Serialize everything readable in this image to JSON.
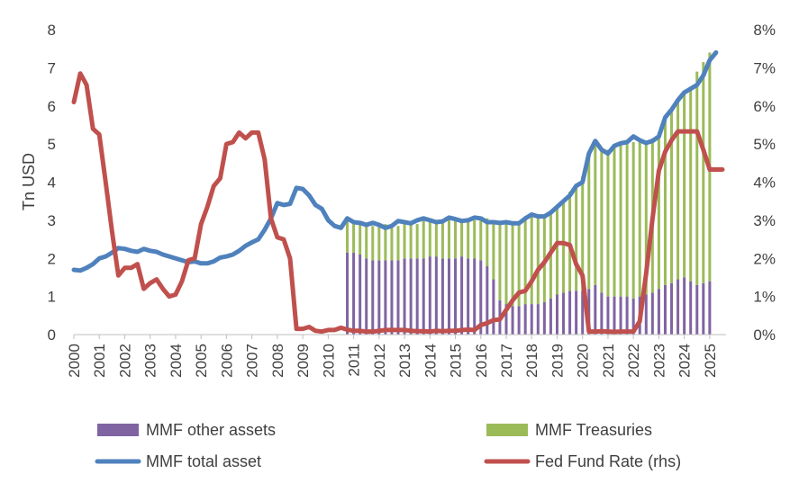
{
  "chart_data": {
    "type": "bar+line",
    "ylabel": "Tn USD",
    "ylim": [
      0,
      8
    ],
    "y_ticks": [
      "0",
      "1",
      "2",
      "3",
      "4",
      "5",
      "6",
      "7",
      "8"
    ],
    "y2lim": [
      0,
      8
    ],
    "y2_ticks": [
      "0%",
      "1%",
      "2%",
      "3%",
      "4%",
      "5%",
      "6%",
      "7%",
      "8%"
    ],
    "xlim": [
      2000,
      2025.5
    ],
    "x_ticks": [
      "2000",
      "2001",
      "2002",
      "2003",
      "2004",
      "2005",
      "2006",
      "2007",
      "2008",
      "2009",
      "2010",
      "2011",
      "2012",
      "2013",
      "2014",
      "2015",
      "2016",
      "2017",
      "2018",
      "2019",
      "2020",
      "2021",
      "2022",
      "2023",
      "2024",
      "2025"
    ],
    "grid": false,
    "legend_position": "bottom",
    "series": [
      {
        "name": "MMF other assets",
        "kind": "bar",
        "color": "#8064a2",
        "x_start": 2010.75,
        "step": 0.25,
        "values": [
          2.15,
          2.15,
          2.1,
          2.0,
          1.95,
          1.95,
          1.95,
          1.95,
          1.95,
          2.0,
          2.0,
          2.0,
          2.0,
          2.05,
          2.05,
          2.0,
          2.0,
          2.0,
          2.05,
          2.0,
          2.0,
          1.95,
          1.8,
          1.45,
          0.9,
          0.8,
          0.75,
          0.75,
          0.8,
          0.8,
          0.8,
          0.85,
          0.95,
          1.05,
          1.1,
          1.15,
          1.15,
          1.15,
          1.2,
          1.3,
          1.1,
          1.0,
          1.0,
          1.0,
          1.0,
          0.95,
          1.0,
          1.05,
          1.1,
          1.2,
          1.3,
          1.35,
          1.45,
          1.5,
          1.4,
          1.3,
          1.35,
          1.4
        ]
      },
      {
        "name": "MMF Treasuries",
        "kind": "bar",
        "color": "#9bbb59",
        "x_start": 2010.75,
        "step": 0.25,
        "values": [
          0.85,
          0.8,
          0.85,
          0.9,
          0.9,
          0.95,
          0.95,
          0.85,
          0.9,
          0.95,
          0.9,
          0.9,
          1.0,
          1.0,
          0.95,
          1.0,
          1.05,
          1.0,
          0.95,
          1.0,
          1.0,
          1.1,
          1.25,
          1.5,
          2.05,
          2.15,
          2.2,
          2.15,
          2.3,
          2.35,
          2.3,
          2.3,
          2.25,
          2.35,
          2.45,
          2.6,
          2.75,
          3.0,
          3.6,
          3.8,
          3.8,
          3.85,
          3.95,
          4.05,
          4.05,
          4.1,
          4.05,
          4.0,
          4.05,
          4.0,
          4.4,
          4.55,
          4.7,
          4.85,
          5.1,
          5.6,
          5.8,
          6.0
        ]
      },
      {
        "name": "MMF total asset",
        "kind": "line",
        "axis": "left",
        "color": "#4f81bd",
        "points": [
          [
            2000.0,
            1.7
          ],
          [
            2000.25,
            1.68
          ],
          [
            2000.5,
            1.75
          ],
          [
            2000.75,
            1.85
          ],
          [
            2001.0,
            2.0
          ],
          [
            2001.25,
            2.05
          ],
          [
            2001.5,
            2.15
          ],
          [
            2001.75,
            2.27
          ],
          [
            2002.0,
            2.25
          ],
          [
            2002.25,
            2.2
          ],
          [
            2002.5,
            2.17
          ],
          [
            2002.75,
            2.25
          ],
          [
            2003.0,
            2.2
          ],
          [
            2003.25,
            2.17
          ],
          [
            2003.5,
            2.1
          ],
          [
            2003.75,
            2.05
          ],
          [
            2004.0,
            2.0
          ],
          [
            2004.25,
            1.95
          ],
          [
            2004.5,
            1.9
          ],
          [
            2004.75,
            1.92
          ],
          [
            2005.0,
            1.87
          ],
          [
            2005.25,
            1.87
          ],
          [
            2005.5,
            1.92
          ],
          [
            2005.75,
            2.02
          ],
          [
            2006.0,
            2.05
          ],
          [
            2006.25,
            2.1
          ],
          [
            2006.5,
            2.2
          ],
          [
            2006.75,
            2.33
          ],
          [
            2007.0,
            2.42
          ],
          [
            2007.25,
            2.5
          ],
          [
            2007.5,
            2.75
          ],
          [
            2007.75,
            3.05
          ],
          [
            2008.0,
            3.45
          ],
          [
            2008.25,
            3.4
          ],
          [
            2008.5,
            3.43
          ],
          [
            2008.75,
            3.85
          ],
          [
            2009.0,
            3.82
          ],
          [
            2009.25,
            3.65
          ],
          [
            2009.5,
            3.4
          ],
          [
            2009.75,
            3.3
          ],
          [
            2010.0,
            3.0
          ],
          [
            2010.25,
            2.85
          ],
          [
            2010.5,
            2.8
          ],
          [
            2010.75,
            3.05
          ],
          [
            2011.0,
            2.95
          ],
          [
            2011.25,
            2.93
          ],
          [
            2011.5,
            2.88
          ],
          [
            2011.75,
            2.93
          ],
          [
            2012.0,
            2.88
          ],
          [
            2012.25,
            2.8
          ],
          [
            2012.5,
            2.85
          ],
          [
            2012.75,
            2.98
          ],
          [
            2013.0,
            2.95
          ],
          [
            2013.25,
            2.92
          ],
          [
            2013.5,
            3.0
          ],
          [
            2013.75,
            3.05
          ],
          [
            2014.0,
            3.0
          ],
          [
            2014.25,
            2.95
          ],
          [
            2014.5,
            2.97
          ],
          [
            2014.75,
            3.07
          ],
          [
            2015.0,
            3.03
          ],
          [
            2015.25,
            2.98
          ],
          [
            2015.5,
            3.0
          ],
          [
            2015.75,
            3.07
          ],
          [
            2016.0,
            3.05
          ],
          [
            2016.25,
            2.95
          ],
          [
            2016.5,
            2.95
          ],
          [
            2016.75,
            2.93
          ],
          [
            2017.0,
            2.95
          ],
          [
            2017.25,
            2.92
          ],
          [
            2017.5,
            2.92
          ],
          [
            2017.75,
            3.05
          ],
          [
            2018.0,
            3.15
          ],
          [
            2018.25,
            3.1
          ],
          [
            2018.5,
            3.1
          ],
          [
            2018.75,
            3.2
          ],
          [
            2019.0,
            3.35
          ],
          [
            2019.25,
            3.5
          ],
          [
            2019.5,
            3.65
          ],
          [
            2019.75,
            3.9
          ],
          [
            2020.0,
            4.0
          ],
          [
            2020.25,
            4.75
          ],
          [
            2020.5,
            5.08
          ],
          [
            2020.75,
            4.85
          ],
          [
            2021.0,
            4.75
          ],
          [
            2021.25,
            4.95
          ],
          [
            2021.5,
            5.02
          ],
          [
            2021.75,
            5.05
          ],
          [
            2022.0,
            5.2
          ],
          [
            2022.25,
            5.1
          ],
          [
            2022.5,
            5.03
          ],
          [
            2022.75,
            5.08
          ],
          [
            2023.0,
            5.2
          ],
          [
            2023.25,
            5.7
          ],
          [
            2023.5,
            5.9
          ],
          [
            2023.75,
            6.15
          ],
          [
            2024.0,
            6.35
          ],
          [
            2024.25,
            6.45
          ],
          [
            2024.5,
            6.55
          ],
          [
            2024.75,
            6.8
          ],
          [
            2025.0,
            7.2
          ],
          [
            2025.25,
            7.4
          ]
        ]
      },
      {
        "name": "Fed Fund Rate (rhs)",
        "kind": "line",
        "axis": "right",
        "unit": "%",
        "color": "#c0504d",
        "points": [
          [
            2000.0,
            6.1
          ],
          [
            2000.25,
            6.85
          ],
          [
            2000.5,
            6.55
          ],
          [
            2000.75,
            5.4
          ],
          [
            2001.0,
            5.25
          ],
          [
            2001.25,
            4.0
          ],
          [
            2001.5,
            2.7
          ],
          [
            2001.75,
            1.55
          ],
          [
            2002.0,
            1.75
          ],
          [
            2002.25,
            1.75
          ],
          [
            2002.5,
            1.85
          ],
          [
            2002.75,
            1.2
          ],
          [
            2003.0,
            1.35
          ],
          [
            2003.25,
            1.45
          ],
          [
            2003.5,
            1.2
          ],
          [
            2003.75,
            1.0
          ],
          [
            2004.0,
            1.05
          ],
          [
            2004.25,
            1.4
          ],
          [
            2004.5,
            1.95
          ],
          [
            2004.75,
            2.0
          ],
          [
            2005.0,
            2.9
          ],
          [
            2005.25,
            3.35
          ],
          [
            2005.5,
            3.9
          ],
          [
            2005.75,
            4.1
          ],
          [
            2006.0,
            5.0
          ],
          [
            2006.25,
            5.05
          ],
          [
            2006.5,
            5.3
          ],
          [
            2006.75,
            5.15
          ],
          [
            2007.0,
            5.3
          ],
          [
            2007.25,
            5.3
          ],
          [
            2007.5,
            4.6
          ],
          [
            2007.75,
            3.05
          ],
          [
            2008.0,
            2.55
          ],
          [
            2008.25,
            2.5
          ],
          [
            2008.5,
            2.0
          ],
          [
            2008.75,
            0.15
          ],
          [
            2009.0,
            0.15
          ],
          [
            2009.25,
            0.2
          ],
          [
            2009.5,
            0.1
          ],
          [
            2009.75,
            0.08
          ],
          [
            2010.0,
            0.12
          ],
          [
            2010.25,
            0.12
          ],
          [
            2010.5,
            0.18
          ],
          [
            2010.75,
            0.13
          ],
          [
            2011.0,
            0.1
          ],
          [
            2011.25,
            0.1
          ],
          [
            2011.5,
            0.08
          ],
          [
            2011.75,
            0.08
          ],
          [
            2012.0,
            0.1
          ],
          [
            2012.25,
            0.12
          ],
          [
            2012.5,
            0.12
          ],
          [
            2012.75,
            0.12
          ],
          [
            2013.0,
            0.12
          ],
          [
            2013.25,
            0.1
          ],
          [
            2013.5,
            0.09
          ],
          [
            2013.75,
            0.09
          ],
          [
            2014.0,
            0.08
          ],
          [
            2014.25,
            0.1
          ],
          [
            2014.5,
            0.09
          ],
          [
            2014.75,
            0.1
          ],
          [
            2015.0,
            0.1
          ],
          [
            2015.25,
            0.12
          ],
          [
            2015.5,
            0.13
          ],
          [
            2015.75,
            0.12
          ],
          [
            2016.0,
            0.25
          ],
          [
            2016.25,
            0.3
          ],
          [
            2016.5,
            0.38
          ],
          [
            2016.75,
            0.4
          ],
          [
            2017.0,
            0.65
          ],
          [
            2017.25,
            0.9
          ],
          [
            2017.5,
            1.1
          ],
          [
            2017.75,
            1.15
          ],
          [
            2018.0,
            1.4
          ],
          [
            2018.25,
            1.7
          ],
          [
            2018.5,
            1.9
          ],
          [
            2018.75,
            2.15
          ],
          [
            2019.0,
            2.4
          ],
          [
            2019.25,
            2.4
          ],
          [
            2019.5,
            2.35
          ],
          [
            2019.75,
            1.85
          ],
          [
            2020.0,
            1.55
          ],
          [
            2020.25,
            0.08
          ],
          [
            2020.5,
            0.08
          ],
          [
            2020.75,
            0.09
          ],
          [
            2021.0,
            0.08
          ],
          [
            2021.25,
            0.07
          ],
          [
            2021.5,
            0.08
          ],
          [
            2021.75,
            0.08
          ],
          [
            2022.0,
            0.08
          ],
          [
            2022.25,
            0.35
          ],
          [
            2022.5,
            1.6
          ],
          [
            2022.75,
            3.05
          ],
          [
            2023.0,
            4.3
          ],
          [
            2023.25,
            4.8
          ],
          [
            2023.5,
            5.1
          ],
          [
            2023.75,
            5.33
          ],
          [
            2024.0,
            5.33
          ],
          [
            2024.25,
            5.33
          ],
          [
            2024.5,
            5.33
          ],
          [
            2024.75,
            4.85
          ],
          [
            2025.0,
            4.33
          ],
          [
            2025.25,
            4.33
          ],
          [
            2025.5,
            4.33
          ]
        ]
      }
    ]
  }
}
